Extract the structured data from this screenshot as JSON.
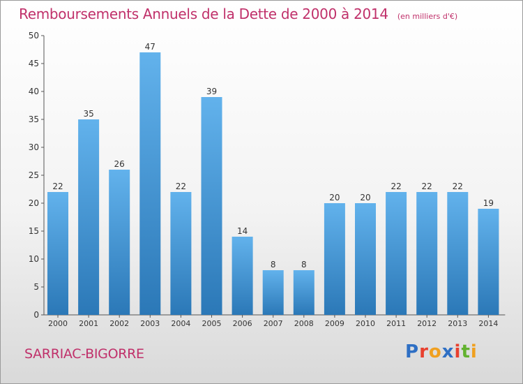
{
  "title": "Remboursements Annuels de la Dette de 2000 à 2014",
  "unit_note": "(en milliers d'€)",
  "commune": "SARRIAC-BIGORRE",
  "brand": {
    "text": "Proxiti",
    "colors": [
      "#2e6fc4",
      "#e8402e",
      "#f0a020",
      "#2e6fc4",
      "#e8402e",
      "#62b22f",
      "#f0a020"
    ]
  },
  "colors": {
    "bar_light": "#62b2ec",
    "bar_dark": "#2b78b7",
    "title": "#c0306a",
    "axis": "#555555",
    "label": "#333333"
  },
  "chart_data": {
    "type": "bar",
    "title": "Remboursements Annuels de la Dette de 2000 à 2014",
    "xlabel": "",
    "ylabel": "",
    "categories": [
      "2000",
      "2001",
      "2002",
      "2003",
      "2004",
      "2005",
      "2006",
      "2007",
      "2008",
      "2009",
      "2010",
      "2011",
      "2012",
      "2013",
      "2014"
    ],
    "values": [
      22,
      35,
      26,
      47,
      22,
      39,
      14,
      8,
      8,
      20,
      20,
      22,
      22,
      22,
      19
    ],
    "ylim": [
      0,
      50
    ],
    "yticks": [
      0,
      5,
      10,
      15,
      20,
      25,
      30,
      35,
      40,
      45,
      50
    ],
    "grid": false,
    "data_labels": true
  }
}
